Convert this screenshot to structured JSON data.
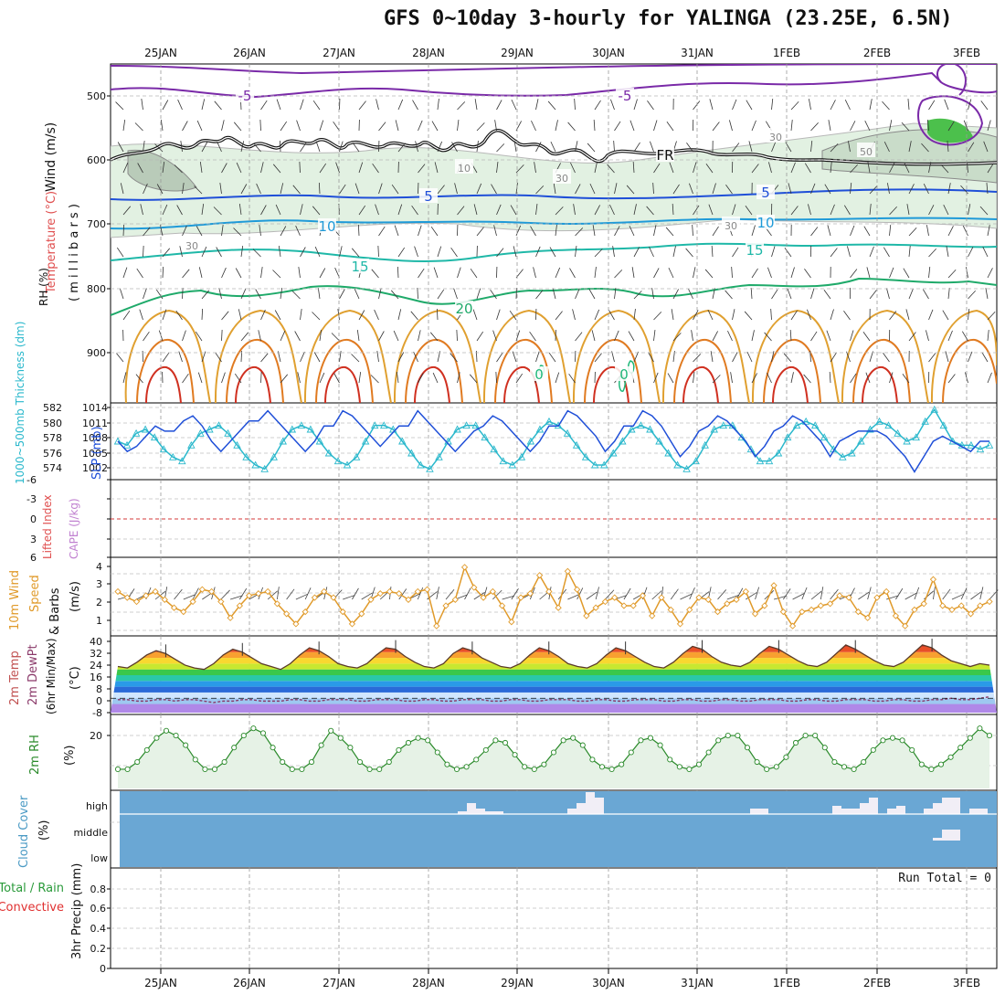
{
  "title": "GFS 0~10day 3-hourly for YALINGA (23.25E, 6.5N)",
  "dates": [
    "25JAN",
    "26JAN",
    "27JAN",
    "28JAN",
    "29JAN",
    "30JAN",
    "31JAN",
    "1FEB",
    "2FEB",
    "3FEB"
  ],
  "colors": {
    "grid": "#9a9a9a",
    "temp_series": "#1f4fd8",
    "slp_series": "#2ab8cc",
    "wind_series": "#e09a2a",
    "rh_series": "#2a8a2a",
    "cloud_fill": "#6aa7d4",
    "cloud_gap": "#f1eef6",
    "freezing": "#222222",
    "dewpoint": "#8b3a6a"
  },
  "panels": {
    "upper": {
      "ylabel_wind": "Wind (m/s)",
      "ylabel_temp": "Temperature (°C)",
      "ylabel_rh": "RH (%)",
      "ylabel_mb": "( m i l l i b a r s )",
      "yticks": [
        "500",
        "600",
        "700",
        "800",
        "900"
      ],
      "contour_labels": [
        {
          "text": "-5",
          "color": "#7a2aa8"
        },
        {
          "text": "-5",
          "color": "#7a2aa8"
        },
        {
          "text": "5",
          "color": "#1f4fd8"
        },
        {
          "text": "5",
          "color": "#1f4fd8"
        },
        {
          "text": "10",
          "color": "#1f9ad8"
        },
        {
          "text": "10",
          "color": "#1f9ad8"
        },
        {
          "text": "15",
          "color": "#1fb8a8"
        },
        {
          "text": "15",
          "color": "#1fb8a8"
        },
        {
          "text": "20",
          "color": "#1faa6a"
        },
        {
          "text": "FR",
          "color": "#111111"
        },
        {
          "text": "30",
          "color": "#888888"
        },
        {
          "text": "30",
          "color": "#888888"
        },
        {
          "text": "30",
          "color": "#888888"
        },
        {
          "text": "30",
          "color": "#888888"
        },
        {
          "text": "50",
          "color": "#888888"
        },
        {
          "text": "10",
          "color": "#888888"
        },
        {
          "text": "0",
          "color": "#1fb87a"
        },
        {
          "text": "0",
          "color": "#1fb87a"
        }
      ]
    },
    "slp": {
      "ylabel_slp": "SLP (mb)",
      "ylabel_thick": "1000~500mb Thickness (dm)",
      "slp_ticks": [
        "1014",
        "1011",
        "1008",
        "1005",
        "1002"
      ],
      "thick_ticks": [
        "582",
        "580",
        "578",
        "576",
        "574"
      ]
    },
    "cape": {
      "ylabel_cape": "CAPE (J/kg)",
      "ylabel_li": "Lifted Index",
      "ticks": [
        "-6",
        "-3",
        "0",
        "3",
        "6"
      ]
    },
    "wind10": {
      "ylabel_1": "10m Wind",
      "ylabel_2": "Speed",
      "ylabel_3": "& Barbs",
      "ylabel_units": "(m/s)",
      "ticks": [
        "4",
        "3",
        "2",
        "1"
      ]
    },
    "temp2m": {
      "ylabel_1": "2m Temp",
      "ylabel_2": "2m DewPt",
      "ylabel_3": "(6hr Min/Max)",
      "ylabel_units": "(°C)",
      "ticks": [
        "40",
        "32",
        "24",
        "16",
        "8",
        "0",
        "-8"
      ]
    },
    "rh2m": {
      "ylabel": "2m RH",
      "ylabel_units": "(%)",
      "ticks": [
        "20"
      ]
    },
    "cloud": {
      "ylabel": "Cloud Cover",
      "ylabel_units": "(%)",
      "levels": [
        "high",
        "middle",
        "low"
      ]
    },
    "precip": {
      "ylabel_total": "Total / Rain",
      "ylabel_conv": "Convective",
      "ylabel_units": "3hr Precip (mm)",
      "ticks": [
        "0.8",
        "0.6",
        "0.4",
        "0.2",
        "0"
      ],
      "run_total": "Run Total = 0"
    }
  },
  "chart_data": [
    {
      "type": "line",
      "name": "mean sea level pressure",
      "units": "mb",
      "x_step_hours": 3,
      "y_range": [
        1001,
        1015
      ],
      "values": [
        1008,
        1006,
        1007,
        1009,
        1011,
        1010,
        1010,
        1012,
        1013,
        1011,
        1008,
        1006,
        1008,
        1010,
        1012,
        1012,
        1014,
        1012,
        1010,
        1008,
        1006,
        1008,
        1011,
        1011,
        1014,
        1013,
        1011,
        1009,
        1007,
        1009,
        1011,
        1011,
        1014,
        1012,
        1010,
        1008,
        1006,
        1008,
        1010,
        1011,
        1013,
        1012,
        1010,
        1008,
        1006,
        1008,
        1011,
        1011,
        1014,
        1013,
        1011,
        1009,
        1006,
        1008,
        1011,
        1011,
        1014,
        1013,
        1011,
        1008,
        1005,
        1007,
        1010,
        1011,
        1013,
        1012,
        1010,
        1008,
        1005,
        1007,
        1010,
        1011,
        1013,
        1012,
        1010,
        1008,
        1005,
        1008,
        1009,
        1010,
        1010,
        1010,
        1009,
        1007,
        1005,
        1002,
        1005,
        1008,
        1009,
        1008,
        1007,
        1006,
        1008,
        1008
      ]
    },
    {
      "type": "line",
      "name": "1000-500mb thickness",
      "units": "dm",
      "x_step_hours": 3,
      "y_range": [
        573.5,
        582.5
      ],
      "values": [
        578,
        577.5,
        579,
        579.5,
        578.5,
        577,
        576,
        575.5,
        577.5,
        579,
        579.5,
        580,
        579,
        577.5,
        576,
        575,
        574.5,
        576,
        578,
        579.5,
        580,
        579.5,
        578,
        576.5,
        575.5,
        575,
        576,
        578,
        580,
        580,
        579.5,
        578,
        576.5,
        575,
        574.5,
        576,
        578,
        579.5,
        580,
        580,
        578.5,
        577,
        575.5,
        575,
        576,
        578,
        579.5,
        580.5,
        580,
        579,
        577.5,
        576,
        575,
        575,
        576.5,
        578,
        579.5,
        580,
        579.5,
        578,
        576.5,
        575,
        574.5,
        575.5,
        577.5,
        579.5,
        580,
        580,
        578.5,
        577,
        575.5,
        575.5,
        576.5,
        578.5,
        580,
        580.5,
        580,
        578.5,
        577,
        576,
        576.5,
        578,
        579.5,
        580.5,
        580,
        579,
        578,
        578.5,
        580.5,
        582,
        580,
        578,
        577.5,
        577.5,
        577,
        577.5
      ]
    },
    {
      "type": "line",
      "name": "10m wind speed",
      "units": "m/s",
      "x_step_hours": 3,
      "y_range": [
        0.5,
        4.2
      ],
      "values": [
        2.6,
        2.3,
        2.1,
        2.4,
        2.6,
        2.2,
        1.8,
        1.6,
        2.1,
        2.7,
        2.6,
        2.1,
        1.3,
        1.9,
        2.4,
        2.5,
        2.6,
        2.0,
        1.5,
        1.0,
        1.6,
        2.3,
        2.6,
        2.3,
        1.6,
        1.0,
        1.5,
        2.2,
        2.5,
        2.6,
        2.5,
        2.2,
        2.6,
        2.7,
        0.9,
        1.9,
        2.2,
        3.8,
        2.8,
        2.3,
        2.6,
        1.9,
        1.1,
        2.3,
        2.5,
        3.4,
        2.6,
        1.8,
        3.6,
        2.7,
        1.4,
        1.8,
        2.1,
        2.3,
        1.9,
        1.9,
        2.4,
        1.4,
        2.3,
        1.7,
        1.0,
        1.7,
        2.3,
        2.2,
        1.6,
        2.0,
        2.2,
        2.6,
        1.5,
        1.9,
        2.9,
        1.6,
        0.9,
        1.6,
        1.7,
        1.9,
        2.0,
        2.4,
        2.3,
        1.6,
        1.3,
        2.3,
        2.6,
        1.4,
        0.9,
        1.7,
        2.0,
        3.2,
        1.9,
        1.7,
        1.9,
        1.5,
        1.9,
        2.1
      ]
    },
    {
      "type": "area",
      "name": "2m temperature",
      "units": "°C",
      "x_step_hours": 3,
      "y_range": [
        -10,
        42
      ],
      "values": [
        22,
        21,
        25,
        30,
        33,
        31,
        27,
        23,
        21,
        20,
        24,
        30,
        34,
        32,
        28,
        24,
        22,
        20,
        24,
        30,
        35,
        33,
        29,
        24,
        22,
        21,
        24,
        30,
        35,
        34,
        29,
        25,
        22,
        21,
        24,
        31,
        35,
        33,
        28,
        25,
        22,
        21,
        24,
        30,
        35,
        33,
        29,
        24,
        22,
        21,
        24,
        30,
        35,
        33,
        29,
        25,
        22,
        21,
        25,
        31,
        36,
        34,
        29,
        25,
        23,
        22,
        25,
        31,
        36,
        34,
        30,
        26,
        23,
        22,
        25,
        31,
        37,
        34,
        30,
        26,
        23,
        22,
        25,
        31,
        37,
        35,
        30,
        26,
        24,
        22,
        24,
        23
      ]
    },
    {
      "type": "line",
      "name": "2m dewpoint",
      "units": "°C",
      "x_step_hours": 3,
      "y_range": [
        -10,
        42
      ],
      "values": [
        -1,
        -1,
        -2,
        -2,
        -1,
        -1,
        -2,
        -1,
        -1,
        -2,
        -3,
        -2,
        -2,
        -1,
        -1,
        -2,
        -2,
        -2,
        -1,
        -1,
        -2,
        -2,
        -1,
        -1,
        -1,
        -2,
        -2,
        -1,
        -1,
        -1,
        -2,
        -2,
        -1,
        -1,
        -2,
        -2,
        -1,
        -1,
        -1,
        -2,
        -2,
        -1,
        -1,
        -2,
        -2,
        -1,
        -1,
        -1,
        -2,
        -2,
        -1,
        -1,
        -2,
        -2,
        -1,
        -1,
        -1,
        -2,
        -2,
        -1,
        -1,
        -2,
        -2,
        -1,
        -1,
        -2,
        -2,
        -1,
        -1,
        -1,
        -2,
        -2,
        -1,
        -1,
        -2,
        -2,
        -1,
        -1,
        -1,
        -2,
        -2,
        -1,
        -1,
        -2,
        -2,
        -1,
        -1,
        0,
        -1,
        -1,
        0,
        1
      ]
    },
    {
      "type": "area",
      "name": "2m relative humidity",
      "units": "%",
      "x_step_hours": 3,
      "y_range": [
        0,
        30
      ],
      "values": [
        8,
        8,
        11,
        16,
        21,
        24,
        22,
        18,
        12,
        8,
        8,
        11,
        17,
        22,
        25,
        23,
        17,
        11,
        8,
        8,
        11,
        18,
        24,
        21,
        17,
        11,
        8,
        8,
        11,
        16,
        19,
        21,
        20,
        15,
        10,
        8,
        9,
        12,
        16,
        20,
        19,
        14,
        9,
        8,
        10,
        15,
        20,
        21,
        18,
        12,
        9,
        8,
        10,
        15,
        20,
        21,
        18,
        12,
        9,
        8,
        10,
        15,
        20,
        22,
        22,
        17,
        11,
        8,
        9,
        13,
        19,
        22,
        22,
        17,
        11,
        9,
        8,
        11,
        16,
        20,
        21,
        20,
        16,
        10,
        8,
        10,
        13,
        17,
        21,
        25,
        22
      ]
    },
    {
      "type": "bar",
      "name": "high cloud gap",
      "units": "%",
      "x_step_hours": 3,
      "values": [
        0,
        0,
        0,
        0,
        0,
        0,
        0,
        0,
        0,
        0,
        0,
        0,
        0,
        0,
        0,
        0,
        0,
        0,
        0,
        0,
        0,
        0,
        0,
        0,
        0,
        0,
        0,
        0,
        0,
        0,
        0,
        0,
        0,
        0,
        0,
        0,
        0,
        5,
        20,
        10,
        5,
        5,
        0,
        0,
        0,
        0,
        0,
        0,
        0,
        10,
        20,
        40,
        30,
        0,
        0,
        0,
        0,
        0,
        0,
        0,
        0,
        0,
        0,
        0,
        0,
        0,
        0,
        0,
        0,
        10,
        10,
        0,
        0,
        0,
        0,
        0,
        0,
        0,
        15,
        10,
        10,
        20,
        30,
        0,
        10,
        15,
        0,
        0,
        10,
        20,
        30,
        30,
        0,
        10,
        10,
        0
      ]
    },
    {
      "type": "bar",
      "name": "middle cloud gap",
      "units": "%",
      "x_step_hours": 3,
      "values": [
        0,
        0,
        0,
        0,
        0,
        0,
        0,
        0,
        0,
        0,
        0,
        0,
        0,
        0,
        0,
        0,
        0,
        0,
        0,
        0,
        0,
        0,
        0,
        0,
        0,
        0,
        0,
        0,
        0,
        0,
        0,
        0,
        0,
        0,
        0,
        0,
        0,
        0,
        0,
        0,
        0,
        0,
        0,
        0,
        0,
        0,
        0,
        0,
        0,
        0,
        0,
        0,
        0,
        0,
        0,
        0,
        0,
        0,
        0,
        0,
        0,
        0,
        0,
        0,
        0,
        0,
        0,
        0,
        0,
        0,
        0,
        0,
        0,
        0,
        0,
        0,
        0,
        0,
        0,
        0,
        0,
        0,
        0,
        0,
        0,
        0,
        0,
        0,
        0,
        5,
        20,
        20,
        0,
        0,
        0,
        0
      ]
    },
    {
      "type": "bar",
      "name": "3hr precipitation",
      "units": "mm",
      "x_step_hours": 3,
      "y_range": [
        0,
        1
      ],
      "values": [
        0,
        0,
        0,
        0,
        0,
        0,
        0,
        0,
        0,
        0,
        0,
        0,
        0,
        0,
        0,
        0,
        0,
        0,
        0,
        0,
        0,
        0,
        0,
        0,
        0,
        0,
        0,
        0,
        0,
        0,
        0,
        0,
        0,
        0,
        0,
        0,
        0,
        0,
        0,
        0,
        0,
        0,
        0,
        0,
        0,
        0,
        0,
        0,
        0,
        0,
        0,
        0,
        0,
        0,
        0,
        0,
        0,
        0,
        0,
        0,
        0,
        0,
        0,
        0,
        0,
        0,
        0,
        0,
        0,
        0,
        0,
        0,
        0,
        0,
        0,
        0,
        0,
        0,
        0,
        0,
        0,
        0,
        0,
        0,
        0,
        0,
        0,
        0,
        0,
        0,
        0,
        0,
        0,
        0
      ]
    }
  ]
}
